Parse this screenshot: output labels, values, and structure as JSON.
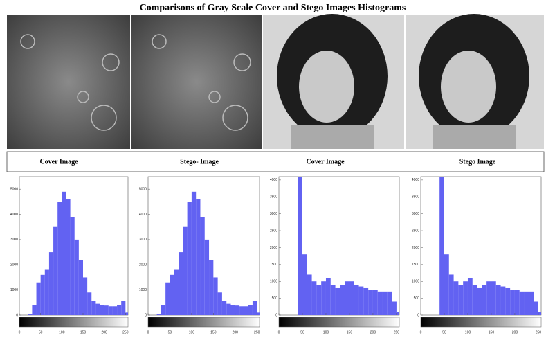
{
  "title": "Comparisons of Gray Scale Cover and Stego Images Histograms",
  "chart_data": [
    {
      "type": "histogram",
      "title": "Cover Image",
      "color": "#6262f2",
      "bins": [
        0,
        10,
        20,
        30,
        40,
        50,
        60,
        70,
        80,
        90,
        100,
        110,
        120,
        130,
        140,
        150,
        160,
        170,
        180,
        190,
        200,
        210,
        220,
        230,
        240,
        250,
        256
      ],
      "values": [
        0,
        0,
        50,
        400,
        1300,
        1600,
        1800,
        2500,
        3500,
        4500,
        4900,
        4600,
        3900,
        3000,
        2200,
        1500,
        900,
        550,
        450,
        400,
        380,
        350,
        350,
        400,
        550,
        100
      ],
      "xlim": [
        0,
        256
      ],
      "ylim": [
        0,
        5500
      ],
      "xticks": [
        0,
        50,
        100,
        150,
        200,
        250
      ],
      "yticks": [
        0,
        1000,
        2000,
        3000,
        4000,
        5000
      ]
    },
    {
      "type": "histogram",
      "title": "Stego- Image",
      "color": "#6262f2",
      "bins": [
        0,
        10,
        20,
        30,
        40,
        50,
        60,
        70,
        80,
        90,
        100,
        110,
        120,
        130,
        140,
        150,
        160,
        170,
        180,
        190,
        200,
        210,
        220,
        230,
        240,
        250,
        256
      ],
      "values": [
        0,
        0,
        50,
        400,
        1300,
        1600,
        1800,
        2500,
        3500,
        4500,
        4900,
        4600,
        3900,
        3000,
        2200,
        1500,
        900,
        550,
        450,
        400,
        380,
        350,
        350,
        400,
        550,
        100
      ],
      "xlim": [
        0,
        256
      ],
      "ylim": [
        0,
        5500
      ],
      "xticks": [
        0,
        50,
        100,
        150,
        200,
        250
      ],
      "yticks": [
        0,
        1000,
        2000,
        3000,
        4000,
        5000
      ]
    },
    {
      "type": "histogram",
      "title": "Cover Image",
      "color": "#6262f2",
      "bins": [
        0,
        10,
        20,
        30,
        40,
        50,
        60,
        70,
        80,
        90,
        100,
        110,
        120,
        130,
        140,
        150,
        160,
        170,
        180,
        190,
        200,
        210,
        220,
        230,
        240,
        250,
        256
      ],
      "values": [
        0,
        0,
        0,
        0,
        4100,
        1800,
        1200,
        1000,
        900,
        1000,
        1100,
        900,
        800,
        900,
        1000,
        1000,
        900,
        850,
        800,
        750,
        750,
        700,
        700,
        700,
        400,
        100
      ],
      "xlim": [
        0,
        256
      ],
      "ylim": [
        0,
        4100
      ],
      "xticks": [
        0,
        50,
        100,
        150,
        200,
        250
      ],
      "yticks": [
        0,
        500,
        1000,
        1500,
        2000,
        2500,
        3000,
        3500,
        4000
      ]
    },
    {
      "type": "histogram",
      "title": "Stego Image",
      "color": "#6262f2",
      "bins": [
        0,
        10,
        20,
        30,
        40,
        50,
        60,
        70,
        80,
        90,
        100,
        110,
        120,
        130,
        140,
        150,
        160,
        170,
        180,
        190,
        200,
        210,
        220,
        230,
        240,
        250,
        256
      ],
      "values": [
        0,
        0,
        0,
        0,
        4100,
        1800,
        1200,
        1000,
        900,
        1000,
        1100,
        900,
        800,
        900,
        1000,
        1000,
        900,
        850,
        800,
        750,
        750,
        700,
        700,
        700,
        400,
        100
      ],
      "xlim": [
        0,
        256
      ],
      "ylim": [
        0,
        4100
      ],
      "xticks": [
        0,
        50,
        100,
        150,
        200,
        250
      ],
      "yticks": [
        0,
        500,
        1000,
        1500,
        2000,
        2500,
        3000,
        3500,
        4000
      ]
    }
  ]
}
